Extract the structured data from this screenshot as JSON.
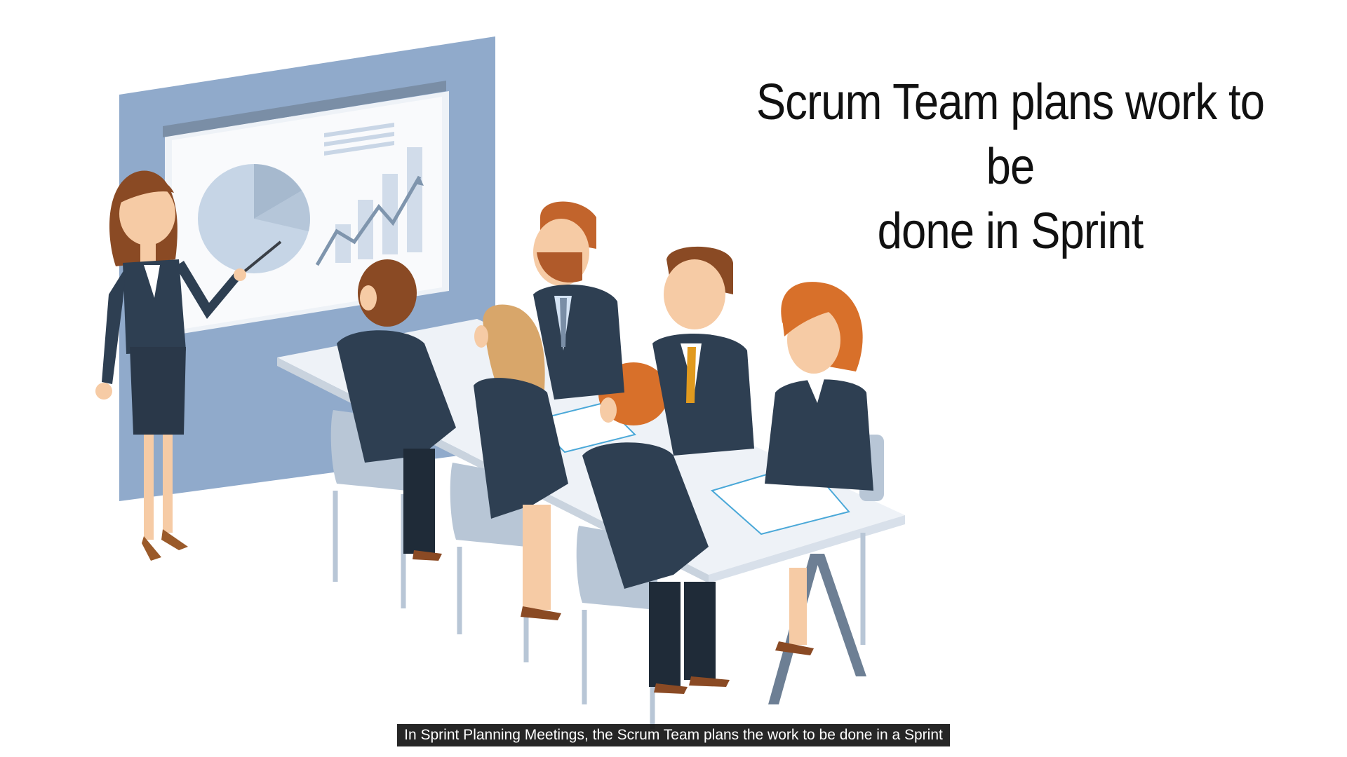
{
  "slide": {
    "title_line1": "Scrum Team plans work to be",
    "title_line2": "done in Sprint",
    "illustration": "team-meeting-presentation-illustration"
  },
  "caption": {
    "text": "In Sprint Planning Meetings, the Scrum Team plans the work to be done in a Sprint"
  },
  "colors": {
    "background": "#ffffff",
    "suit": "#2e3f52",
    "board_frame": "#8ea8c8",
    "chair": "#b8c6d6",
    "table": "#eef2f7",
    "hair_brown": "#8a4a24",
    "hair_orange": "#d8702a",
    "skin": "#f6cba5",
    "caption_bg": "#141414"
  }
}
